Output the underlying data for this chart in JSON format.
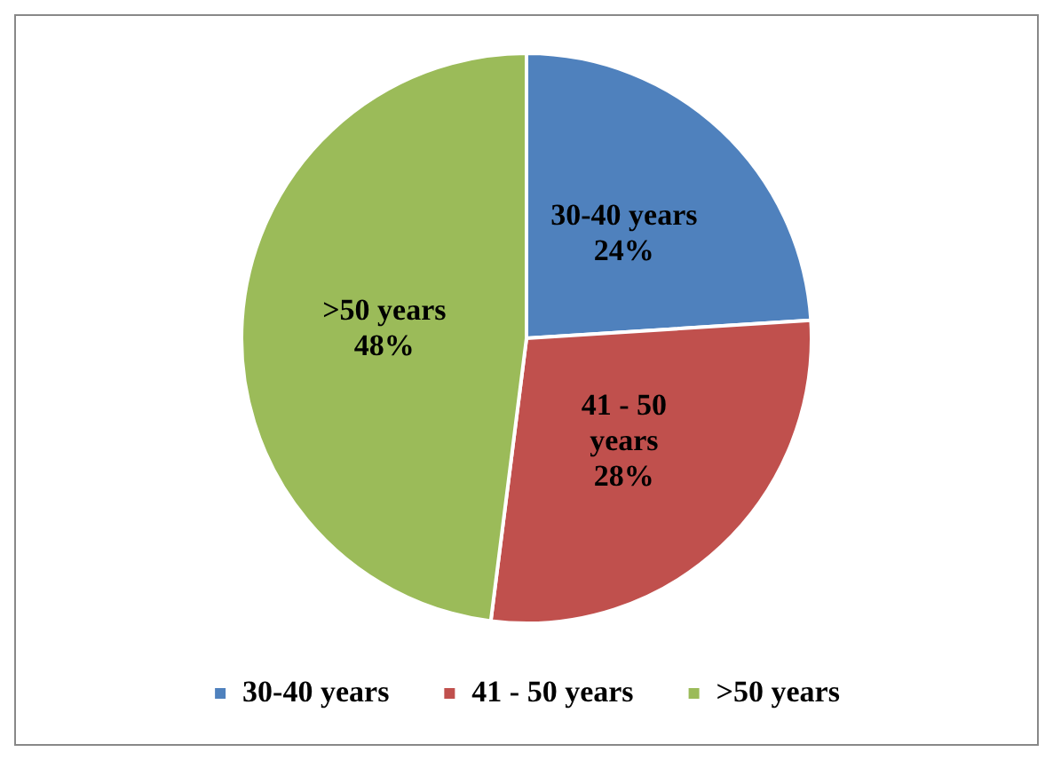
{
  "chart_data": {
    "type": "pie",
    "categories": [
      "30-40 years",
      "41 - 50 years",
      ">50 years"
    ],
    "values": [
      24,
      28,
      48
    ],
    "colors": [
      "#4f81bd",
      "#c0504d",
      "#9bbb59"
    ],
    "value_labels": [
      "24%",
      "28%",
      "48%"
    ],
    "legend": "bottom"
  }
}
